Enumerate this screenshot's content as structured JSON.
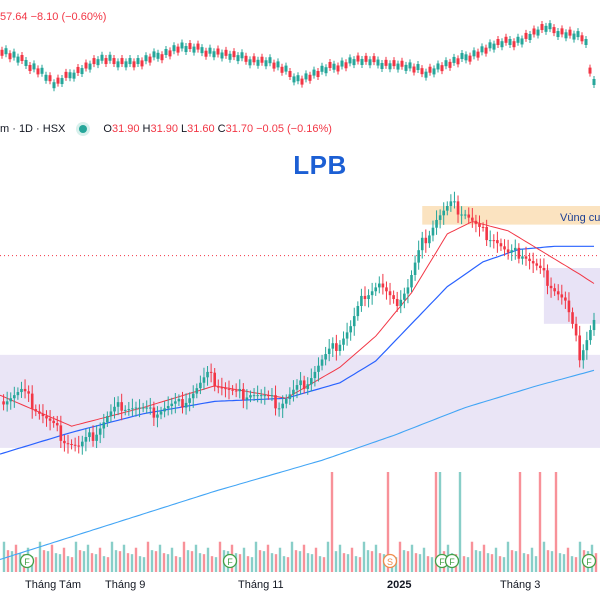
{
  "header": {
    "top_quote": "57.64  −8.10 (−0.60%)",
    "symbol_label": "m · 1D · HSX",
    "ohlc": [
      {
        "k": "O",
        "v": "31.90"
      },
      {
        "k": "H",
        "v": "31.90"
      },
      {
        "k": "L",
        "v": "31.60"
      },
      {
        "k": "C",
        "v": "31.70"
      }
    ],
    "change": "−0.05 (−0.16%)"
  },
  "title": "LPB",
  "annotations": {
    "resistance_zone": "Vùng cu"
  },
  "colors": {
    "up": "#26a69a",
    "down": "#f23645",
    "ma_short": "#f23645",
    "ma_mid": "#2962ff",
    "ma_long": "#42a5f5",
    "support_zone": "#e6e0f5",
    "resistance_zone": "#fbe3c0",
    "title": "#1c5fd4"
  },
  "x_axis_labels": [
    {
      "text": "Tháng Tám",
      "bold": false
    },
    {
      "text": "Tháng 9",
      "bold": false
    },
    {
      "text": "Tháng 11",
      "bold": false
    },
    {
      "text": "2025",
      "bold": true
    },
    {
      "text": "Tháng 3",
      "bold": false
    }
  ],
  "event_markers": [
    "F",
    "F",
    "S",
    "F",
    "F",
    "F"
  ],
  "chart_data": {
    "type": "candlestick",
    "title": "LPB",
    "interval": "1D",
    "exchange": "HSX",
    "last_bar": {
      "open": 31.9,
      "high": 31.9,
      "low": 31.6,
      "close": 31.7,
      "change": -0.05,
      "change_pct": -0.16
    },
    "close_path": [
      [
        0,
        29.1
      ],
      [
        6,
        29.4
      ],
      [
        10,
        28.9
      ],
      [
        14,
        28.4
      ],
      [
        18,
        27.9
      ],
      [
        22,
        27.6
      ],
      [
        26,
        28.0
      ],
      [
        30,
        28.6
      ],
      [
        34,
        29.0
      ],
      [
        38,
        28.9
      ],
      [
        42,
        28.7
      ],
      [
        46,
        28.9
      ],
      [
        50,
        29.0
      ],
      [
        54,
        29.4
      ],
      [
        58,
        29.9
      ],
      [
        62,
        29.6
      ],
      [
        66,
        29.3
      ],
      [
        70,
        29.4
      ],
      [
        74,
        29.2
      ],
      [
        78,
        29.0
      ],
      [
        82,
        29.4
      ],
      [
        86,
        29.8
      ],
      [
        90,
        30.4
      ],
      [
        94,
        30.9
      ],
      [
        98,
        31.5
      ],
      [
        102,
        32.6
      ],
      [
        106,
        32.9
      ],
      [
        110,
        32.2
      ],
      [
        114,
        32.8
      ],
      [
        118,
        34.2
      ],
      [
        122,
        35.0
      ],
      [
        126,
        35.4
      ],
      [
        130,
        35.2
      ],
      [
        134,
        34.6
      ],
      [
        138,
        34.4
      ],
      [
        142,
        33.8
      ],
      [
        146,
        33.9
      ],
      [
        150,
        33.4
      ],
      [
        154,
        32.9
      ],
      [
        158,
        32.3
      ],
      [
        162,
        30.6
      ],
      [
        166,
        31.7
      ]
    ],
    "ma_short_path": [
      [
        0,
        29.3
      ],
      [
        20,
        28.3
      ],
      [
        40,
        28.9
      ],
      [
        60,
        29.6
      ],
      [
        80,
        29.2
      ],
      [
        95,
        30.2
      ],
      [
        105,
        31.2
      ],
      [
        115,
        32.6
      ],
      [
        125,
        34.5
      ],
      [
        132,
        34.9
      ],
      [
        142,
        34.6
      ],
      [
        152,
        33.9
      ],
      [
        162,
        33.2
      ],
      [
        166,
        32.9
      ]
    ],
    "ma_mid_path": [
      [
        0,
        27.4
      ],
      [
        20,
        28.1
      ],
      [
        40,
        28.7
      ],
      [
        60,
        29.1
      ],
      [
        80,
        29.2
      ],
      [
        95,
        29.7
      ],
      [
        105,
        30.4
      ],
      [
        115,
        31.6
      ],
      [
        125,
        32.8
      ],
      [
        135,
        33.6
      ],
      [
        145,
        34.0
      ],
      [
        155,
        34.1
      ],
      [
        166,
        34.1
      ]
    ],
    "ma_long_path": [
      [
        0,
        24.0
      ],
      [
        30,
        25.1
      ],
      [
        60,
        26.2
      ],
      [
        90,
        27.2
      ],
      [
        110,
        28.0
      ],
      [
        130,
        28.9
      ],
      [
        150,
        29.6
      ],
      [
        166,
        30.1
      ]
    ],
    "zones": [
      {
        "name": "support",
        "low": 27.6,
        "high": 30.6
      },
      {
        "name": "resistance",
        "low": 34.8,
        "high": 35.4
      }
    ],
    "ylim": [
      23.5,
      36.4
    ],
    "volume_relative": [
      0.3,
      0.5,
      0.2,
      0.4,
      0.6,
      0.3,
      0.25,
      0.5,
      0.4,
      0.35,
      0.3,
      0.45,
      0.55,
      0.7,
      0.3,
      0.25,
      0.2,
      0.35,
      0.3,
      0.4,
      0.5,
      0.3,
      0.25,
      0.8,
      0.4,
      0.35,
      0.3,
      0.5,
      0.45,
      0.4,
      0.6,
      0.3,
      0.2,
      0.9,
      0.5,
      0.4,
      0.35,
      0.3,
      0.6,
      0.5,
      0.7,
      0.4
    ]
  }
}
